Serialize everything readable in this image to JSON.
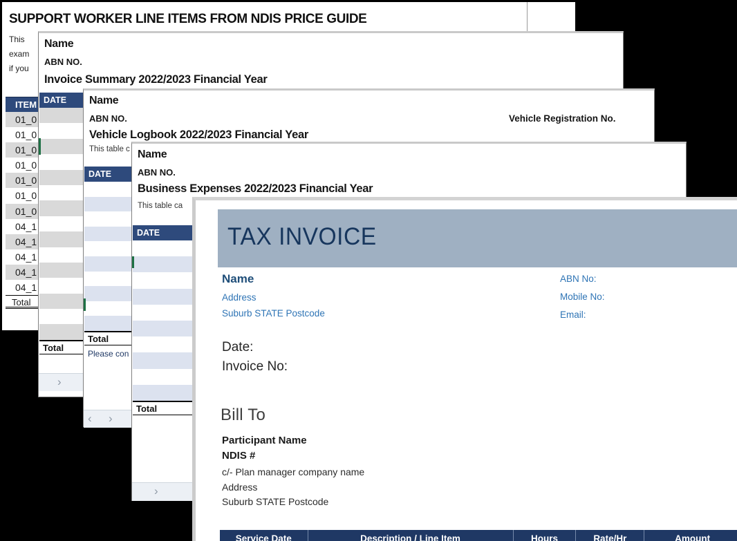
{
  "colors": {
    "background": "#000000",
    "table_header_navy": "#2E4A7C",
    "invoice_header_navy": "#1F3864",
    "row_grey": "#D9D9D9",
    "row_blue": "#DCE2EF",
    "blue_text": "#2E74B5",
    "dark_blue_text": "#1F4E79",
    "green_cell_mark": "#1E7145"
  },
  "icons": {
    "nav_right": "›",
    "nav_left": "‹"
  },
  "price_guide": {
    "title": "SUPPORT WORKER LINE ITEMS FROM NDIS PRICE GUIDE",
    "body_line_fragments": [
      "This",
      "exam",
      "if you"
    ],
    "item_header": "ITEM",
    "item_rows": [
      "01_0",
      "01_0",
      "01_0",
      "01_0",
      "01_0",
      "01_0",
      "01_0",
      "04_1",
      "04_1",
      "04_1",
      "04_1",
      "04_1"
    ],
    "total_label": "Total"
  },
  "invoice_summary": {
    "name": "Name",
    "abn": "ABN NO.",
    "title": "Invoice Summary 2022/2023 Financial Year",
    "date_header": "DATE",
    "empty_row_count": 15,
    "total_label": "Total"
  },
  "vehicle_logbook": {
    "name": "Name",
    "abn": "ABN NO.",
    "vehicle_rego_label": "Vehicle Registration No.",
    "title": "Vehicle Logbook 2022/2023 Financial Year",
    "note_fragment": "This table c",
    "date_header": "DATE",
    "empty_row_count": 10,
    "total_label": "Total",
    "footer_fragment": "Please con"
  },
  "business_expenses": {
    "name": "Name",
    "abn": "ABN NO.",
    "title": "Business Expenses 2022/2023 Financial Year",
    "note_fragment": "This table ca",
    "date_header": "DATE",
    "empty_row_count": 10,
    "total_label": "Total"
  },
  "tax_invoice": {
    "banner_title": "TAX INVOICE",
    "from": {
      "name": "Name",
      "address": "Address",
      "suburb": "Suburb STATE Postcode"
    },
    "contact": {
      "abn_label": "ABN No:",
      "mobile_label": "Mobile No:",
      "email_label": "Email:"
    },
    "date_label": "Date:",
    "invoice_no_label": "Invoice No:",
    "bill_to": {
      "heading": "Bill To",
      "participant": "Participant Name",
      "ndis": "NDIS #",
      "care_of": "c/- Plan manager company name",
      "address": "Address",
      "suburb": "Suburb STATE Postcode"
    },
    "table_headers": [
      "Service Date",
      "Description / Line Item",
      "Hours",
      "Rate/Hr",
      "Amount"
    ]
  }
}
